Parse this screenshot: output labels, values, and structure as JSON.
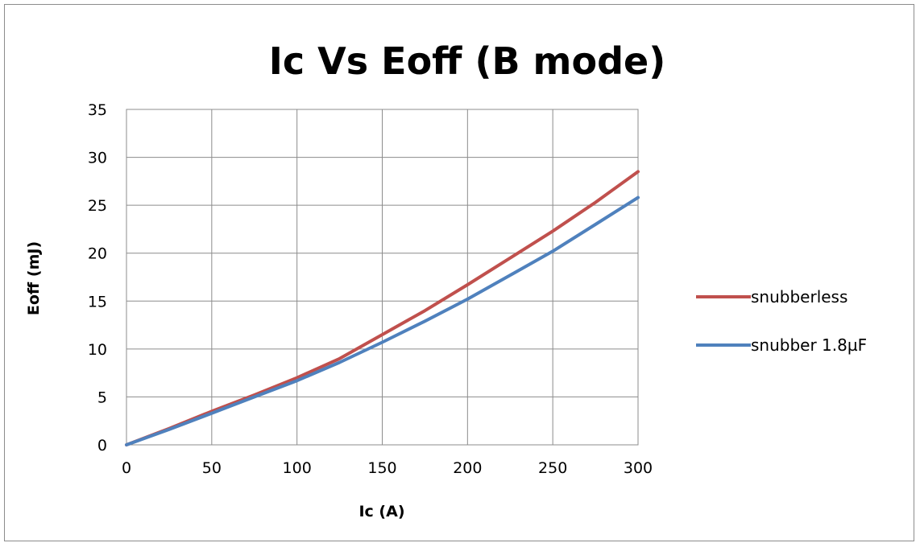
{
  "chart_data": {
    "type": "line",
    "title": "Ic Vs Eoff (B mode)",
    "xlabel": "Ic (A)",
    "ylabel": "Eoff (mJ)",
    "xlim": [
      0,
      300
    ],
    "ylim": [
      0,
      35
    ],
    "xticks": [
      "0",
      "50",
      "100",
      "150",
      "200",
      "250",
      "300"
    ],
    "yticks": [
      "0",
      "5",
      "10",
      "15",
      "20",
      "25",
      "30",
      "35"
    ],
    "grid": true,
    "legend_position": "right",
    "series": [
      {
        "name": "snubberless",
        "color": "#c0504d",
        "x": [
          0,
          25,
          50,
          75,
          100,
          125,
          150,
          175,
          200,
          225,
          250,
          275,
          300
        ],
        "y": [
          0,
          1.7,
          3.5,
          5.2,
          7.0,
          9.0,
          11.5,
          14.0,
          16.7,
          19.5,
          22.3,
          25.3,
          28.5
        ]
      },
      {
        "name": "snubber 1.8µF",
        "color": "#4f81bd",
        "x": [
          0,
          25,
          50,
          75,
          100,
          125,
          150,
          175,
          200,
          225,
          250,
          275,
          300
        ],
        "y": [
          0,
          1.6,
          3.3,
          5.0,
          6.7,
          8.6,
          10.7,
          12.9,
          15.2,
          17.7,
          20.2,
          23.0,
          25.8
        ]
      }
    ]
  }
}
